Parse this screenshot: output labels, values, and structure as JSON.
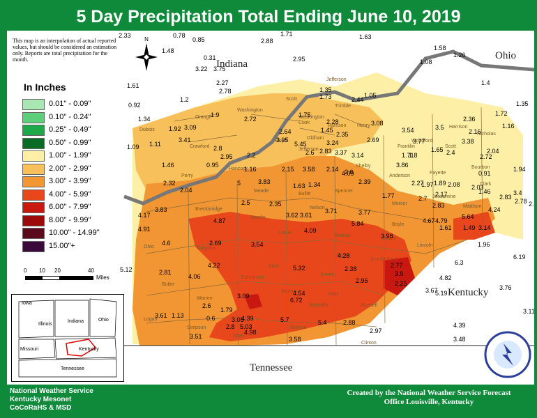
{
  "title": "5 Day Precipitation Total Ending June 10, 2019",
  "note": "This map is an interpolation of actual reported values, but should be considered an estimation only. Reports are total precipitation for the month.",
  "legend": {
    "title": "In Inches",
    "items": [
      {
        "label": "0.01\" - 0.09\"",
        "color": "#a8e6b4"
      },
      {
        "label": "0.10\" - 0.24\"",
        "color": "#5dcf7a"
      },
      {
        "label": "0.25\" - 0.49\"",
        "color": "#1fa84a"
      },
      {
        "label": "0.50\" - 0.99\"",
        "color": "#0a6b24"
      },
      {
        "label": "1.00\" - 1.99\"",
        "color": "#fdf0a6"
      },
      {
        "label": "2.00\" - 2.99\"",
        "color": "#f7c05a"
      },
      {
        "label": "3.00\" - 3.99\"",
        "color": "#f19633"
      },
      {
        "label": "4.00\" - 5.99\"",
        "color": "#e8471c"
      },
      {
        "label": "6.00\" - 7.99\"",
        "color": "#c8180f"
      },
      {
        "label": "8.00\" - 9.99\"",
        "color": "#9c0a0a"
      },
      {
        "label": "10.00\" - 14.99\"",
        "color": "#5a0a1a"
      },
      {
        "label": "15.00\"+",
        "color": "#3a0a3a"
      }
    ]
  },
  "scale": {
    "ticks": [
      "0",
      "10",
      "20",
      "40"
    ],
    "unit": "Miles"
  },
  "inset": {
    "iowa": "Iowa",
    "illinois": "Illinois",
    "indiana": "Indiana",
    "ohio": "Ohio",
    "missouri": "Missouri",
    "kentucky": "Kentucky",
    "tennessee": "Tennessee"
  },
  "states": [
    "Indiana",
    "Ohio",
    "Kentucky",
    "Tennessee"
  ],
  "counties": [
    "Dubois",
    "Orange",
    "Washington",
    "Scott",
    "Jefferson",
    "Clark",
    "Crawford",
    "Floyd",
    "Harrison",
    "Perry",
    "Trimble",
    "Henry",
    "Oldham",
    "Shelby",
    "Jefferson",
    "Bullitt",
    "Spencer",
    "Nelson",
    "Meade",
    "Hardin",
    "Breckinridge",
    "Hancock",
    "Grayson",
    "Ohio",
    "Larue",
    "Marion",
    "Taylor",
    "Green",
    "Hart",
    "Edmonson",
    "Butler",
    "Warren",
    "Barren",
    "Metcalfe",
    "Adair",
    "Russell",
    "Cumberland",
    "Clinton",
    "Monroe",
    "Allen",
    "Simpson",
    "Logan",
    "Casey",
    "Lincoln",
    "Boyle",
    "Mercer",
    "Anderson",
    "Franklin",
    "Woodford",
    "Scott",
    "Harrison",
    "Bourbon",
    "Nicholas",
    "Clark",
    "Madison",
    "Jessamine",
    "Fayette",
    "Washington"
  ],
  "values": [
    "2.33",
    "0.78",
    "0.85",
    "1.71",
    "1.63",
    "2.88",
    "1.48",
    "0.31",
    "3.22",
    "3.75",
    "2.95",
    "1.58",
    "1.26",
    "1.08",
    "1.61",
    "2.27",
    "2.78",
    "1.35",
    "2.44",
    "1.73",
    "1.05",
    "1.4",
    "0.92",
    "1.2",
    "1.9",
    "2.72",
    "1.75",
    "2.28",
    "2.35",
    "3.08",
    "3.54",
    "3.5",
    "2.36",
    "1.72",
    "1.35",
    "1.34",
    "3.09",
    "3.41",
    "2.8",
    "2.64",
    "1.45",
    "3.24",
    "2.69",
    "3.77",
    "2.6",
    "3.38",
    "2.16",
    "1.16",
    "1.92",
    "1.11",
    "2.95",
    "2.2",
    "3.95",
    "5.45",
    "2.83",
    "3.37",
    "3.14",
    "1.71",
    "1.8",
    "1.65",
    "2.4",
    "2.04",
    "2.72",
    "1.09",
    "1.46",
    "0.95",
    "1.16",
    "2.15",
    "3.58",
    "2.14",
    "2.6",
    "3.86",
    "2.27",
    "1.97",
    "1.89",
    "2.08",
    "2.03",
    "1.46",
    "0.91",
    "1.94",
    "2.32",
    "2.04",
    "5",
    "3.83",
    "1.63",
    "1.34",
    "4.09",
    "2.39",
    "1.77",
    "2.7",
    "2.17",
    "2.83",
    "3.4",
    "2.78",
    "2.83",
    "2.62",
    "3.83",
    "4.17",
    "2.5",
    "2.35",
    "3.62",
    "3.61",
    "3.71",
    "3.77",
    "5.64",
    "4.24",
    "4.87",
    "4.09",
    "5.84",
    "4.67",
    "4.79",
    "1.61",
    "1.49",
    "3.14",
    "4.91",
    "4.6",
    "2.69",
    "3.54",
    "3.98",
    "4.22",
    "5.32",
    "4.28",
    "2.38",
    "2.77",
    "3.9",
    "6.3",
    "6.19",
    "5.12",
    "2.81",
    "4.06",
    "2.96",
    "2.25",
    "4.82",
    "3.76",
    "3.67",
    "3.09",
    "6.72",
    "4.54",
    "5.19",
    "3.61",
    "1.13",
    "2.6",
    "1.79",
    "0.6",
    "3.06",
    "4.39",
    "5.7",
    "3.1",
    "1.78",
    "2.8",
    "5.03",
    "5.4",
    "2.88",
    "4.39",
    "3.51",
    "4.98",
    "3.58",
    "2.97",
    "3.48",
    "1.96"
  ],
  "footer": {
    "left": [
      "National Weather Service",
      "Kentucky Mesonet",
      "CoCoRaHS & MSD"
    ],
    "right": [
      "Created by the National Weather Service Forecast",
      "Office Louisville, Kentucky"
    ]
  }
}
